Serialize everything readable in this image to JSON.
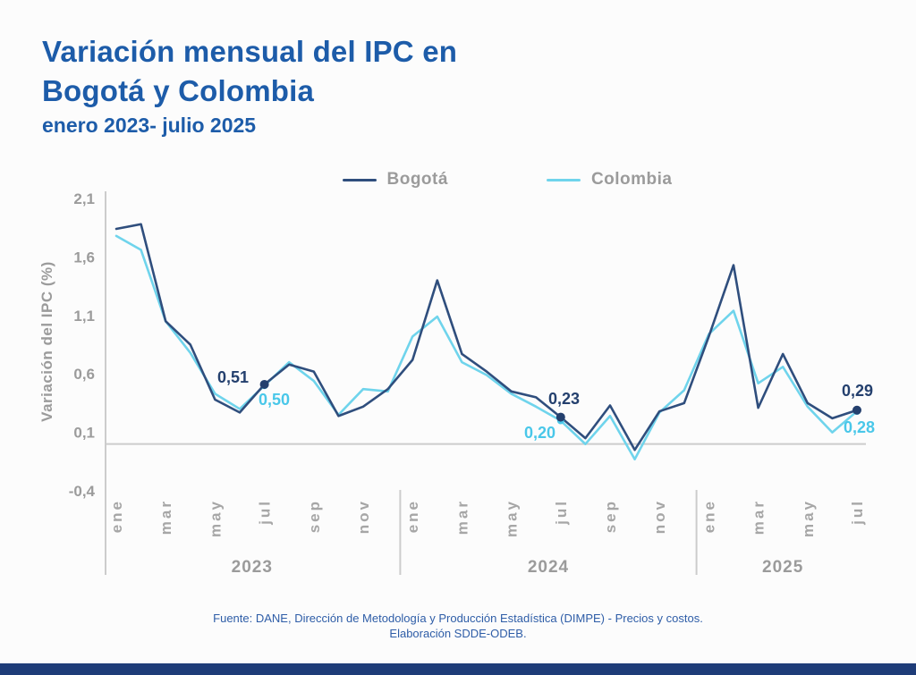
{
  "header": {
    "title_line1": "Variación mensual del IPC en",
    "title_line2": "Bogotá y Colombia",
    "subtitle": "enero 2023- julio 2025"
  },
  "colors": {
    "title_blue": "#1d5ca9",
    "bogota_line": "#2f4e7d",
    "colombia_line": "#6fd4ec",
    "annotation_navy": "#24406e",
    "annotation_cyan": "#49c7e9",
    "axis_gray": "#cccccc",
    "bottom_bar": "#1e3c78"
  },
  "chart_data": {
    "type": "line",
    "title": "Variación mensual del IPC en Bogotá y Colombia (enero 2023 - julio 2025)",
    "xlabel": "",
    "ylabel": "Variación del IPC (%)",
    "ylim": [
      -0.4,
      2.1
    ],
    "yticks": [
      2.1,
      1.6,
      1.1,
      0.6,
      0.1,
      -0.4
    ],
    "ytick_labels": [
      "2,1",
      "1,6",
      "1,1",
      "0,6",
      "0,1",
      "-0,4"
    ],
    "grid": false,
    "legend_position": "top-center",
    "years": [
      {
        "label": "2023",
        "months": 12
      },
      {
        "label": "2024",
        "months": 12
      },
      {
        "label": "2025",
        "months": 7
      }
    ],
    "xticks": [
      {
        "i": 0,
        "label": "ene"
      },
      {
        "i": 2,
        "label": "mar"
      },
      {
        "i": 4,
        "label": "may"
      },
      {
        "i": 6,
        "label": "jul"
      },
      {
        "i": 8,
        "label": "sep"
      },
      {
        "i": 10,
        "label": "nov"
      },
      {
        "i": 12,
        "label": "ene"
      },
      {
        "i": 14,
        "label": "mar"
      },
      {
        "i": 16,
        "label": "may"
      },
      {
        "i": 18,
        "label": "jul"
      },
      {
        "i": 20,
        "label": "sep"
      },
      {
        "i": 22,
        "label": "nov"
      },
      {
        "i": 24,
        "label": "ene"
      },
      {
        "i": 26,
        "label": "mar"
      },
      {
        "i": 28,
        "label": "may"
      },
      {
        "i": 30,
        "label": "jul"
      }
    ],
    "series": [
      {
        "name": "Bogotá",
        "key": "bogota",
        "color": "#2f4e7d",
        "values": [
          1.84,
          1.88,
          1.05,
          0.85,
          0.38,
          0.27,
          0.51,
          0.68,
          0.62,
          0.24,
          0.32,
          0.47,
          0.72,
          1.4,
          0.77,
          0.62,
          0.45,
          0.4,
          0.23,
          0.05,
          0.33,
          -0.05,
          0.28,
          0.35,
          0.92,
          1.53,
          0.31,
          0.77,
          0.35,
          0.22,
          0.29
        ]
      },
      {
        "name": "Colombia",
        "key": "colombia",
        "color": "#6fd4ec",
        "values": [
          1.78,
          1.66,
          1.05,
          0.78,
          0.43,
          0.3,
          0.5,
          0.7,
          0.54,
          0.25,
          0.47,
          0.45,
          0.92,
          1.09,
          0.7,
          0.59,
          0.43,
          0.32,
          0.2,
          0.0,
          0.24,
          -0.13,
          0.27,
          0.46,
          0.94,
          1.14,
          0.52,
          0.66,
          0.32,
          0.1,
          0.28
        ]
      }
    ],
    "annotations": [
      {
        "id": "bogota-jul-2023",
        "series_key": "bogota",
        "month": "jul 2023",
        "i": 6,
        "value": 0.51,
        "label": "0,51",
        "color": "#24406e"
      },
      {
        "id": "colombia-jul-2023",
        "series_key": "colombia",
        "month": "jul 2023",
        "i": 6,
        "value": 0.5,
        "label": "0,50",
        "color": "#49c7e9"
      },
      {
        "id": "bogota-jul-2024",
        "series_key": "bogota",
        "month": "jul 2024",
        "i": 18,
        "value": 0.23,
        "label": "0,23",
        "color": "#24406e"
      },
      {
        "id": "colombia-jul-2024",
        "series_key": "colombia",
        "month": "jul 2024",
        "i": 18,
        "value": 0.2,
        "label": "0,20",
        "color": "#49c7e9"
      },
      {
        "id": "bogota-jul-2025",
        "series_key": "bogota",
        "month": "jul 2025",
        "i": 30,
        "value": 0.29,
        "label": "0,29",
        "color": "#24406e"
      },
      {
        "id": "colombia-jul-2025",
        "series_key": "colombia",
        "month": "jul 2025",
        "i": 30,
        "value": 0.28,
        "label": "0,28",
        "color": "#49c7e9"
      }
    ]
  },
  "footer": {
    "line1": "Fuente: DANE, Dirección de Metodología y Producción Estadística (DIMPE) - Precios y costos.",
    "line2": "Elaboración SDDE-ODEB."
  }
}
